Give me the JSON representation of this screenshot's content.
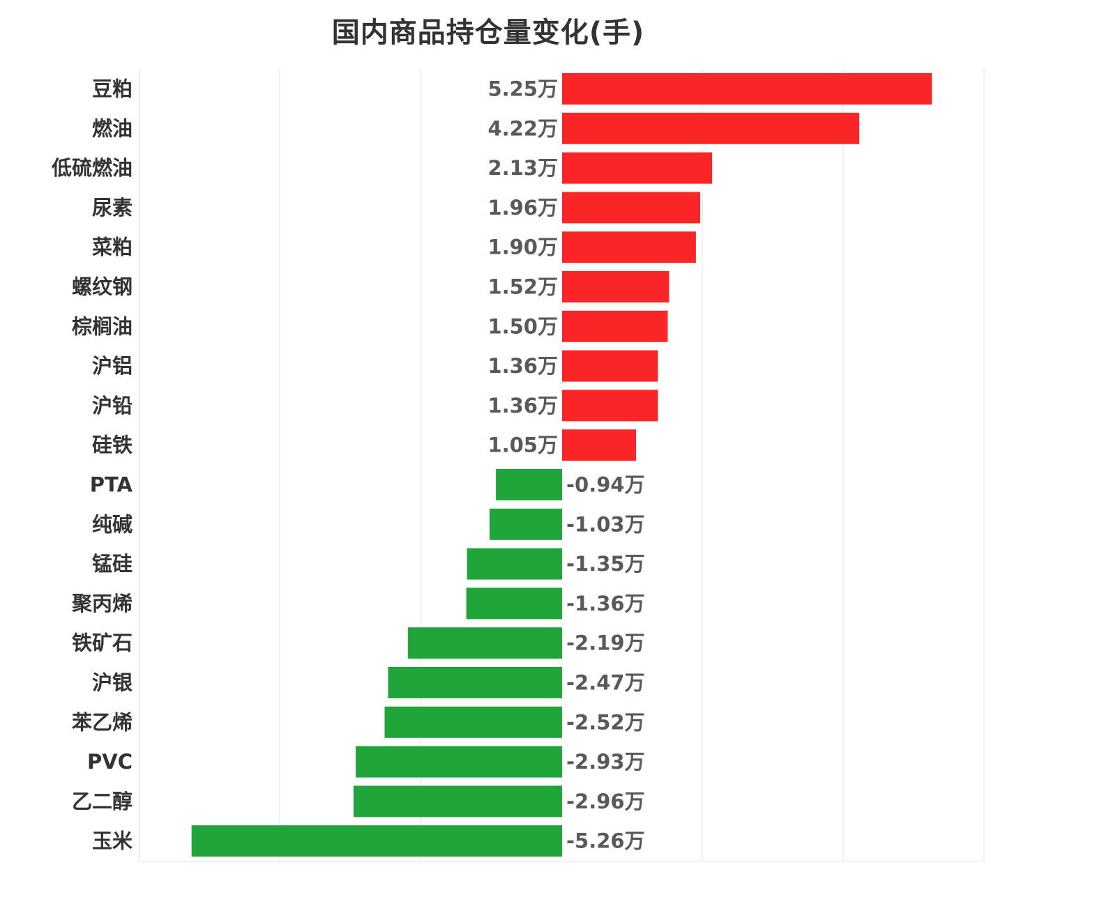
{
  "title": "国内商品持仓量变化(手)",
  "colors": {
    "positive": "#fa2527",
    "negative": "#20a53b",
    "grid": "#e3e3e3",
    "label": "#333333",
    "value": "#595959"
  },
  "chart_data": {
    "type": "bar",
    "orientation": "horizontal",
    "title": "国内商品持仓量变化(手)",
    "xlabel": "",
    "ylabel": "",
    "unit": "万",
    "xlim": [
      -3,
      3
    ],
    "grid": true,
    "legend": "none",
    "categories": [
      "豆粕",
      "燃油",
      "低硫燃油",
      "尿素",
      "菜粕",
      "螺纹钢",
      "棕榈油",
      "沪铝",
      "沪铅",
      "硅铁",
      "PTA",
      "纯碱",
      "锰硅",
      "聚丙烯",
      "铁矿石",
      "沪银",
      "苯乙烯",
      "PVC",
      "乙二醇",
      "玉米"
    ],
    "values": [
      5.25,
      4.22,
      2.13,
      1.96,
      1.9,
      1.52,
      1.5,
      1.36,
      1.36,
      1.05,
      -0.94,
      -1.03,
      -1.35,
      -1.36,
      -2.19,
      -2.47,
      -2.52,
      -2.93,
      -2.96,
      -5.26
    ],
    "value_labels": [
      "5.25万",
      "4.22万",
      "2.13万",
      "1.96万",
      "1.90万",
      "1.52万",
      "1.50万",
      "1.36万",
      "1.36万",
      "1.05万",
      "-0.94万",
      "-1.03万",
      "-1.35万",
      "-1.36万",
      "-2.19万",
      "-2.47万",
      "-2.52万",
      "-2.93万",
      "-2.96万",
      "-5.26万"
    ]
  }
}
